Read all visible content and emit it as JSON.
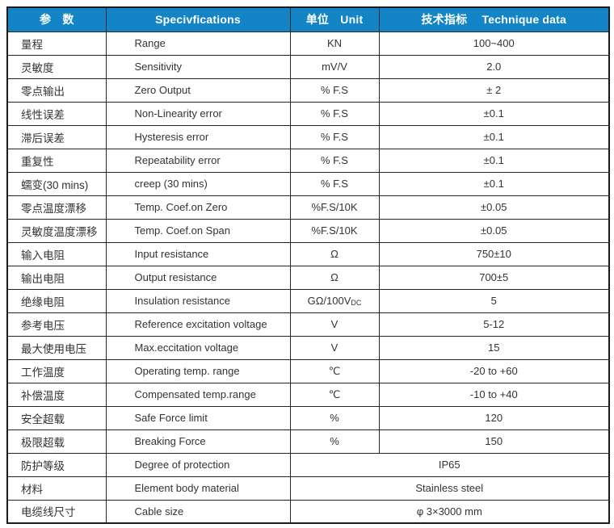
{
  "colors": {
    "header_bg": "#1384c6",
    "header_text": "#ffffff",
    "border_outer": "#1a1a1a",
    "border_inner": "#262626",
    "body_text": "#333333"
  },
  "header": {
    "col_param": "参　数",
    "col_spec": "Specivfications",
    "col_unit": "单位　Unit",
    "col_data": "技术指标　 Technique data"
  },
  "table": {
    "rows": [
      {
        "param": "量程",
        "spec": "Range",
        "unit": "KN",
        "value": "100~400"
      },
      {
        "param": "灵敏度",
        "spec": "Sensitivity",
        "unit": "mV/V",
        "value": "2.0"
      },
      {
        "param": "零点输出",
        "spec": "Zero Output",
        "unit": "% F.S",
        "value": "± 2"
      },
      {
        "param": "线性误差",
        "spec": "Non-Linearity error",
        "unit": "% F.S",
        "value": "±0.1"
      },
      {
        "param": "滞后误差",
        "spec": "Hysteresis error",
        "unit": "% F.S",
        "value": "±0.1"
      },
      {
        "param": "重复性",
        "spec": "Repeatability error",
        "unit": "% F.S",
        "value": "±0.1"
      },
      {
        "param": "蠕变(30 mins)",
        "spec": "creep (30 mins)",
        "unit": "% F.S",
        "value": "±0.1"
      },
      {
        "param": "零点温度漂移",
        "spec": "Temp. Coef.on Zero",
        "unit": "%F.S/10K",
        "value": "±0.05"
      },
      {
        "param": "灵敏度温度漂移",
        "spec": "Temp. Coef.on Span",
        "unit": "%F.S/10K",
        "value": "±0.05"
      },
      {
        "param": "输入电阻",
        "spec": "Input resistance",
        "unit": "Ω",
        "value": "750±10"
      },
      {
        "param": "输出电阻",
        "spec": "Output resistance",
        "unit": "Ω",
        "value": "700±5"
      },
      {
        "param": "绝缘电阻",
        "spec": "Insulation resistance",
        "unit": "GΩ/100V",
        "unit_sub": "DC",
        "value": "5"
      },
      {
        "param": "参考电压",
        "spec": "Reference excitation voltage",
        "unit": "V",
        "value": "5-12"
      },
      {
        "param": "最大使用电压",
        "spec": "Max.eccitation voltage",
        "unit": "V",
        "value": "15"
      },
      {
        "param": "工作温度",
        "spec": "Operating temp. range",
        "unit": "℃",
        "value": "-20 to +60"
      },
      {
        "param": "补偿温度",
        "spec": "Compensated temp.range",
        "unit": "℃",
        "value": "-10 to +40"
      },
      {
        "param": "安全超载",
        "spec": "Safe Force limit",
        "unit": "%",
        "value": "120"
      },
      {
        "param": "极限超载",
        "spec": "Breaking Force",
        "unit": "%",
        "value": "150"
      },
      {
        "param": "防护等级",
        "spec": "Degree of protection",
        "merged": true,
        "value": "IP65"
      },
      {
        "param": "材料",
        "spec": "Element body material",
        "merged": true,
        "value": "Stainless steel"
      },
      {
        "param": "电缆线尺寸",
        "spec": "Cable size",
        "merged": true,
        "value": "φ 3×3000 mm"
      }
    ]
  }
}
